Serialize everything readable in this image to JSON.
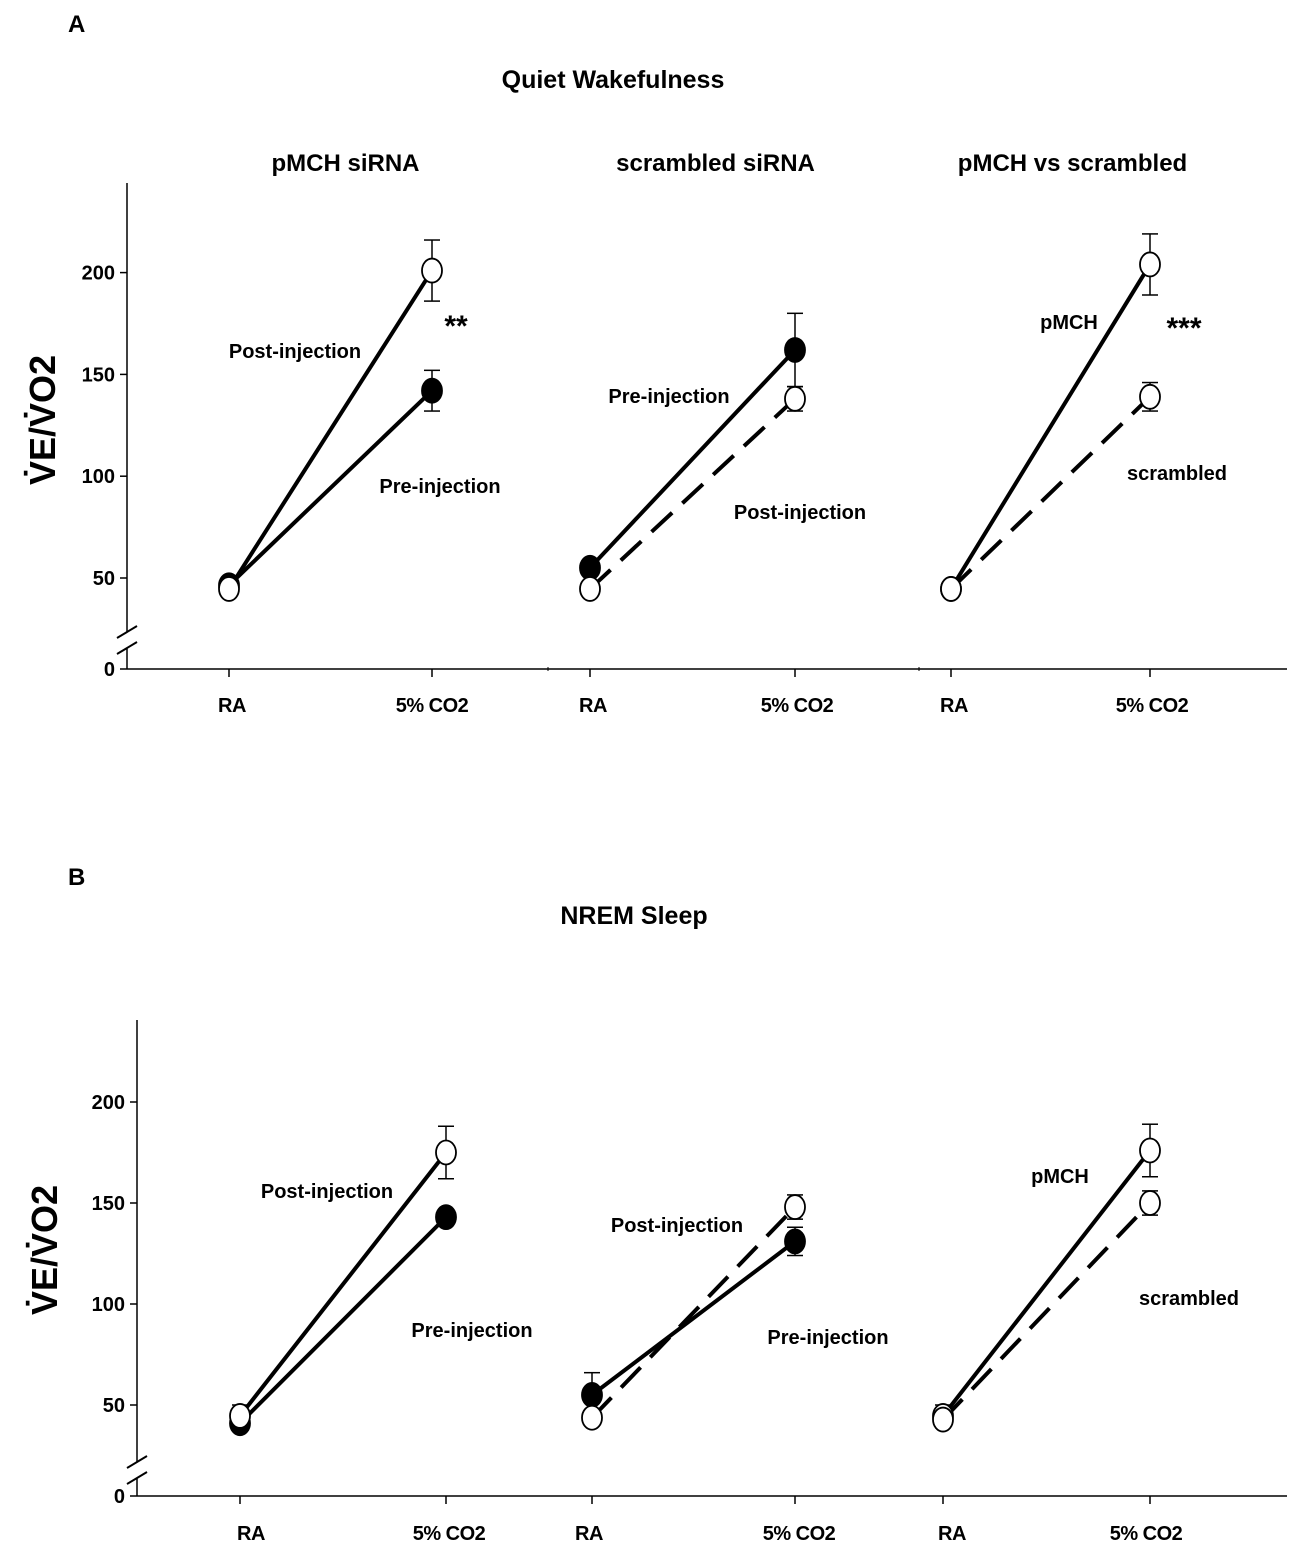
{
  "chart_data": [
    {
      "type": "line",
      "panel_label": "A",
      "title": "Quiet Wakefulness",
      "ylabel": "V̇E/V̇O2",
      "yticks": [
        0,
        50,
        100,
        150,
        200
      ],
      "ylim": [
        0,
        240
      ],
      "axis_break": "between 0 and 50",
      "grid": false,
      "subplots": [
        {
          "title": "pMCH siRNA",
          "categories": [
            "RA",
            "5% CO2"
          ],
          "series": [
            {
              "name": "Post-injection",
              "marker": "open",
              "style": "solid",
              "values": [
                44,
                201
              ],
              "error": [
                0,
                15
              ]
            },
            {
              "name": "Pre-injection",
              "marker": "filled",
              "style": "solid",
              "values": [
                46,
                142
              ],
              "error": [
                0,
                10
              ]
            }
          ],
          "annotations": [
            "Post-injection",
            "Pre-injection",
            "**"
          ]
        },
        {
          "title": "scrambled siRNA",
          "categories": [
            "RA",
            "5% CO2"
          ],
          "series": [
            {
              "name": "Pre-injection",
              "marker": "filled",
              "style": "solid",
              "values": [
                55,
                162
              ],
              "error": [
                0,
                18
              ]
            },
            {
              "name": "Post-injection",
              "marker": "open",
              "style": "dashed",
              "values": [
                44,
                138
              ],
              "error": [
                0,
                6
              ]
            }
          ],
          "annotations": [
            "Pre-injection",
            "Post-injection"
          ]
        },
        {
          "title": "pMCH vs scrambled",
          "categories": [
            "RA",
            "5% CO2"
          ],
          "series": [
            {
              "name": "pMCH",
              "marker": "open",
              "style": "solid",
              "values": [
                44,
                204
              ],
              "error": [
                0,
                15
              ]
            },
            {
              "name": "scrambled",
              "marker": "open",
              "style": "dashed",
              "values": [
                44,
                139
              ],
              "error": [
                0,
                7
              ]
            }
          ],
          "annotations": [
            "pMCH",
            "scrambled",
            "***"
          ]
        }
      ]
    },
    {
      "type": "line",
      "panel_label": "B",
      "title": "NREM Sleep",
      "ylabel": "V̇E/V̇O2",
      "yticks": [
        0,
        50,
        100,
        150,
        200
      ],
      "ylim": [
        0,
        240
      ],
      "axis_break": "between 0 and 50",
      "grid": false,
      "subplots": [
        {
          "title": "",
          "categories": [
            "RA",
            "5% CO2"
          ],
          "series": [
            {
              "name": "Post-injection",
              "marker": "open",
              "style": "solid",
              "values": [
                44,
                175
              ],
              "error": [
                6,
                13
              ]
            },
            {
              "name": "Pre-injection",
              "marker": "filled",
              "style": "solid",
              "values": [
                40,
                143
              ],
              "error": [
                0,
                3
              ]
            }
          ],
          "annotations": [
            "Post-injection",
            "Pre-injection"
          ]
        },
        {
          "title": "",
          "categories": [
            "RA",
            "5% CO2"
          ],
          "series": [
            {
              "name": "Post-injection",
              "marker": "open",
              "style": "dashed",
              "values": [
                43,
                148
              ],
              "error": [
                0,
                6
              ]
            },
            {
              "name": "Pre-injection",
              "marker": "filled",
              "style": "solid",
              "values": [
                55,
                131
              ],
              "error": [
                11,
                7
              ]
            }
          ],
          "annotations": [
            "Post-injection",
            "Pre-injection"
          ]
        },
        {
          "title": "",
          "categories": [
            "RA",
            "5% CO2"
          ],
          "series": [
            {
              "name": "pMCH",
              "marker": "open",
              "style": "solid",
              "values": [
                44,
                176
              ],
              "error": [
                6,
                13
              ]
            },
            {
              "name": "scrambled",
              "marker": "open",
              "style": "dashed",
              "values": [
                42,
                150
              ],
              "error": [
                0,
                6
              ]
            }
          ],
          "annotations": [
            "pMCH",
            "scrambled"
          ]
        }
      ]
    }
  ]
}
